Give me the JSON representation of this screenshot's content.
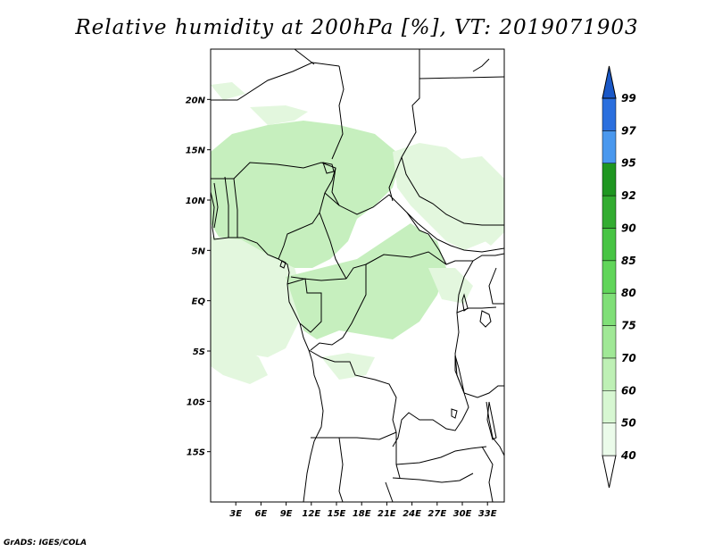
{
  "title": "Relative humidity at 200hPa [%], VT: 2019071903",
  "credit": "GrADS: IGES/COLA",
  "map": {
    "lon_range": [
      0,
      35
    ],
    "lat_range": [
      -20,
      25
    ],
    "lat_ticks": [
      {
        "value": 20,
        "label": "20N"
      },
      {
        "value": 15,
        "label": "15N"
      },
      {
        "value": 10,
        "label": "10N"
      },
      {
        "value": 5,
        "label": "5N"
      },
      {
        "value": 0,
        "label": "EQ"
      },
      {
        "value": -5,
        "label": "5S"
      },
      {
        "value": -10,
        "label": "10S"
      },
      {
        "value": -15,
        "label": "15S"
      }
    ],
    "lon_ticks": [
      {
        "value": 3,
        "label": "3E"
      },
      {
        "value": 6,
        "label": "6E"
      },
      {
        "value": 9,
        "label": "9E"
      },
      {
        "value": 12,
        "label": "12E"
      },
      {
        "value": 15,
        "label": "15E"
      },
      {
        "value": 18,
        "label": "18E"
      },
      {
        "value": 21,
        "label": "21E"
      },
      {
        "value": 24,
        "label": "24E"
      },
      {
        "value": 27,
        "label": "27E"
      },
      {
        "value": 30,
        "label": "30E"
      },
      {
        "value": 33,
        "label": "33E"
      }
    ]
  },
  "colorbar": {
    "levels": [
      {
        "label": "40",
        "color": "#ebfbea"
      },
      {
        "label": "50",
        "color": "#d7f7d2"
      },
      {
        "label": "60",
        "color": "#bef0b5"
      },
      {
        "label": "70",
        "color": "#a0e896"
      },
      {
        "label": "75",
        "color": "#80df78"
      },
      {
        "label": "80",
        "color": "#61d55a"
      },
      {
        "label": "85",
        "color": "#48c444"
      },
      {
        "label": "90",
        "color": "#33ac31"
      },
      {
        "label": "92",
        "color": "#1f9621"
      },
      {
        "label": "95",
        "color": "#4a98ee"
      },
      {
        "label": "97",
        "color": "#2b6fde"
      },
      {
        "label": "99",
        "color": "#1a58c7"
      }
    ],
    "top_color": "#1a58c7"
  },
  "field_colors": {
    "light": "#e3f7de",
    "mid": "#c6efbe"
  }
}
